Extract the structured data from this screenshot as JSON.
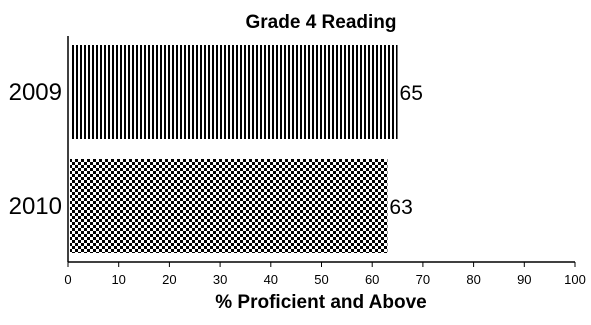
{
  "chart_data": {
    "type": "bar",
    "orientation": "horizontal",
    "title": "Grade 4 Reading",
    "xlabel": "% Proficient and Above",
    "ylabel": "",
    "categories": [
      "2009",
      "2010"
    ],
    "values": [
      65,
      63
    ],
    "data_labels": [
      "65",
      "63"
    ],
    "xlim": [
      0,
      100
    ],
    "x_ticks": [
      "0",
      "10",
      "20",
      "30",
      "40",
      "50",
      "60",
      "70",
      "80",
      "90",
      "100"
    ],
    "bar_fills": [
      "vertical-stripes",
      "checkerboard"
    ],
    "grid": false,
    "legend": "none"
  },
  "colors": {
    "ink": "#000000",
    "background": "#ffffff"
  }
}
